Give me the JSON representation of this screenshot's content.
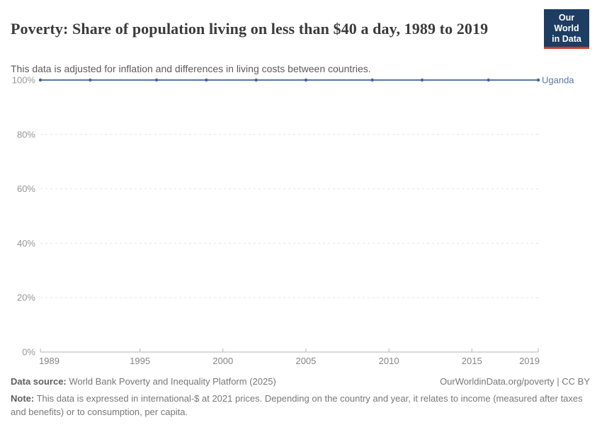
{
  "header": {
    "title": "Poverty: Share of population living on less than $40 a day, 1989 to 2019",
    "subtitle": "This data is adjusted for inflation and differences in living costs between countries.",
    "logo": {
      "line1": "Our World",
      "line2": "in Data",
      "background_color": "#1d3d63",
      "bar_color": "#d4382a"
    }
  },
  "chart_data": {
    "type": "line",
    "title": "Poverty: Share of population living on less than $40 a day, 1989 to 2019",
    "xlabel": "",
    "ylabel": "",
    "xlim": [
      1989,
      2019
    ],
    "ylim": [
      0,
      100
    ],
    "grid": "horizontal-dashed",
    "legend_position": "end-of-line-label",
    "x_ticks": [
      1989,
      1995,
      2000,
      2005,
      2010,
      2015,
      2019
    ],
    "x_tick_labels": [
      "1989",
      "1995",
      "2000",
      "2005",
      "2010",
      "2015",
      "2019"
    ],
    "y_ticks": [
      0,
      20,
      40,
      60,
      80,
      100
    ],
    "y_tick_labels": [
      "0%",
      "20%",
      "40%",
      "60%",
      "80%",
      "100%"
    ],
    "series": [
      {
        "name": "Uganda",
        "color": "#5778ab",
        "marker_color": "#44639c",
        "x": [
          1989,
          1992,
          1996,
          1999,
          2002,
          2005,
          2009,
          2012,
          2016,
          2019
        ],
        "values": [
          100,
          100,
          100,
          100,
          100,
          100,
          100,
          100,
          100,
          100
        ]
      }
    ],
    "colors": {
      "gridline": "#e2e2e2",
      "axis": "#b5b5b5",
      "y_tick_label": "#979797",
      "x_tick_label": "#858585"
    }
  },
  "footer": {
    "source_label": "Data source:",
    "source_text": " World Bank Poverty and Inequality Platform (2025)",
    "rights": "OurWorldinData.org/poverty | CC BY",
    "note_label": "Note:",
    "note_text": " This data is expressed in international-$ at 2021 prices. Depending on the country and year, it relates to income (measured after taxes and benefits) or to consumption, per capita."
  }
}
